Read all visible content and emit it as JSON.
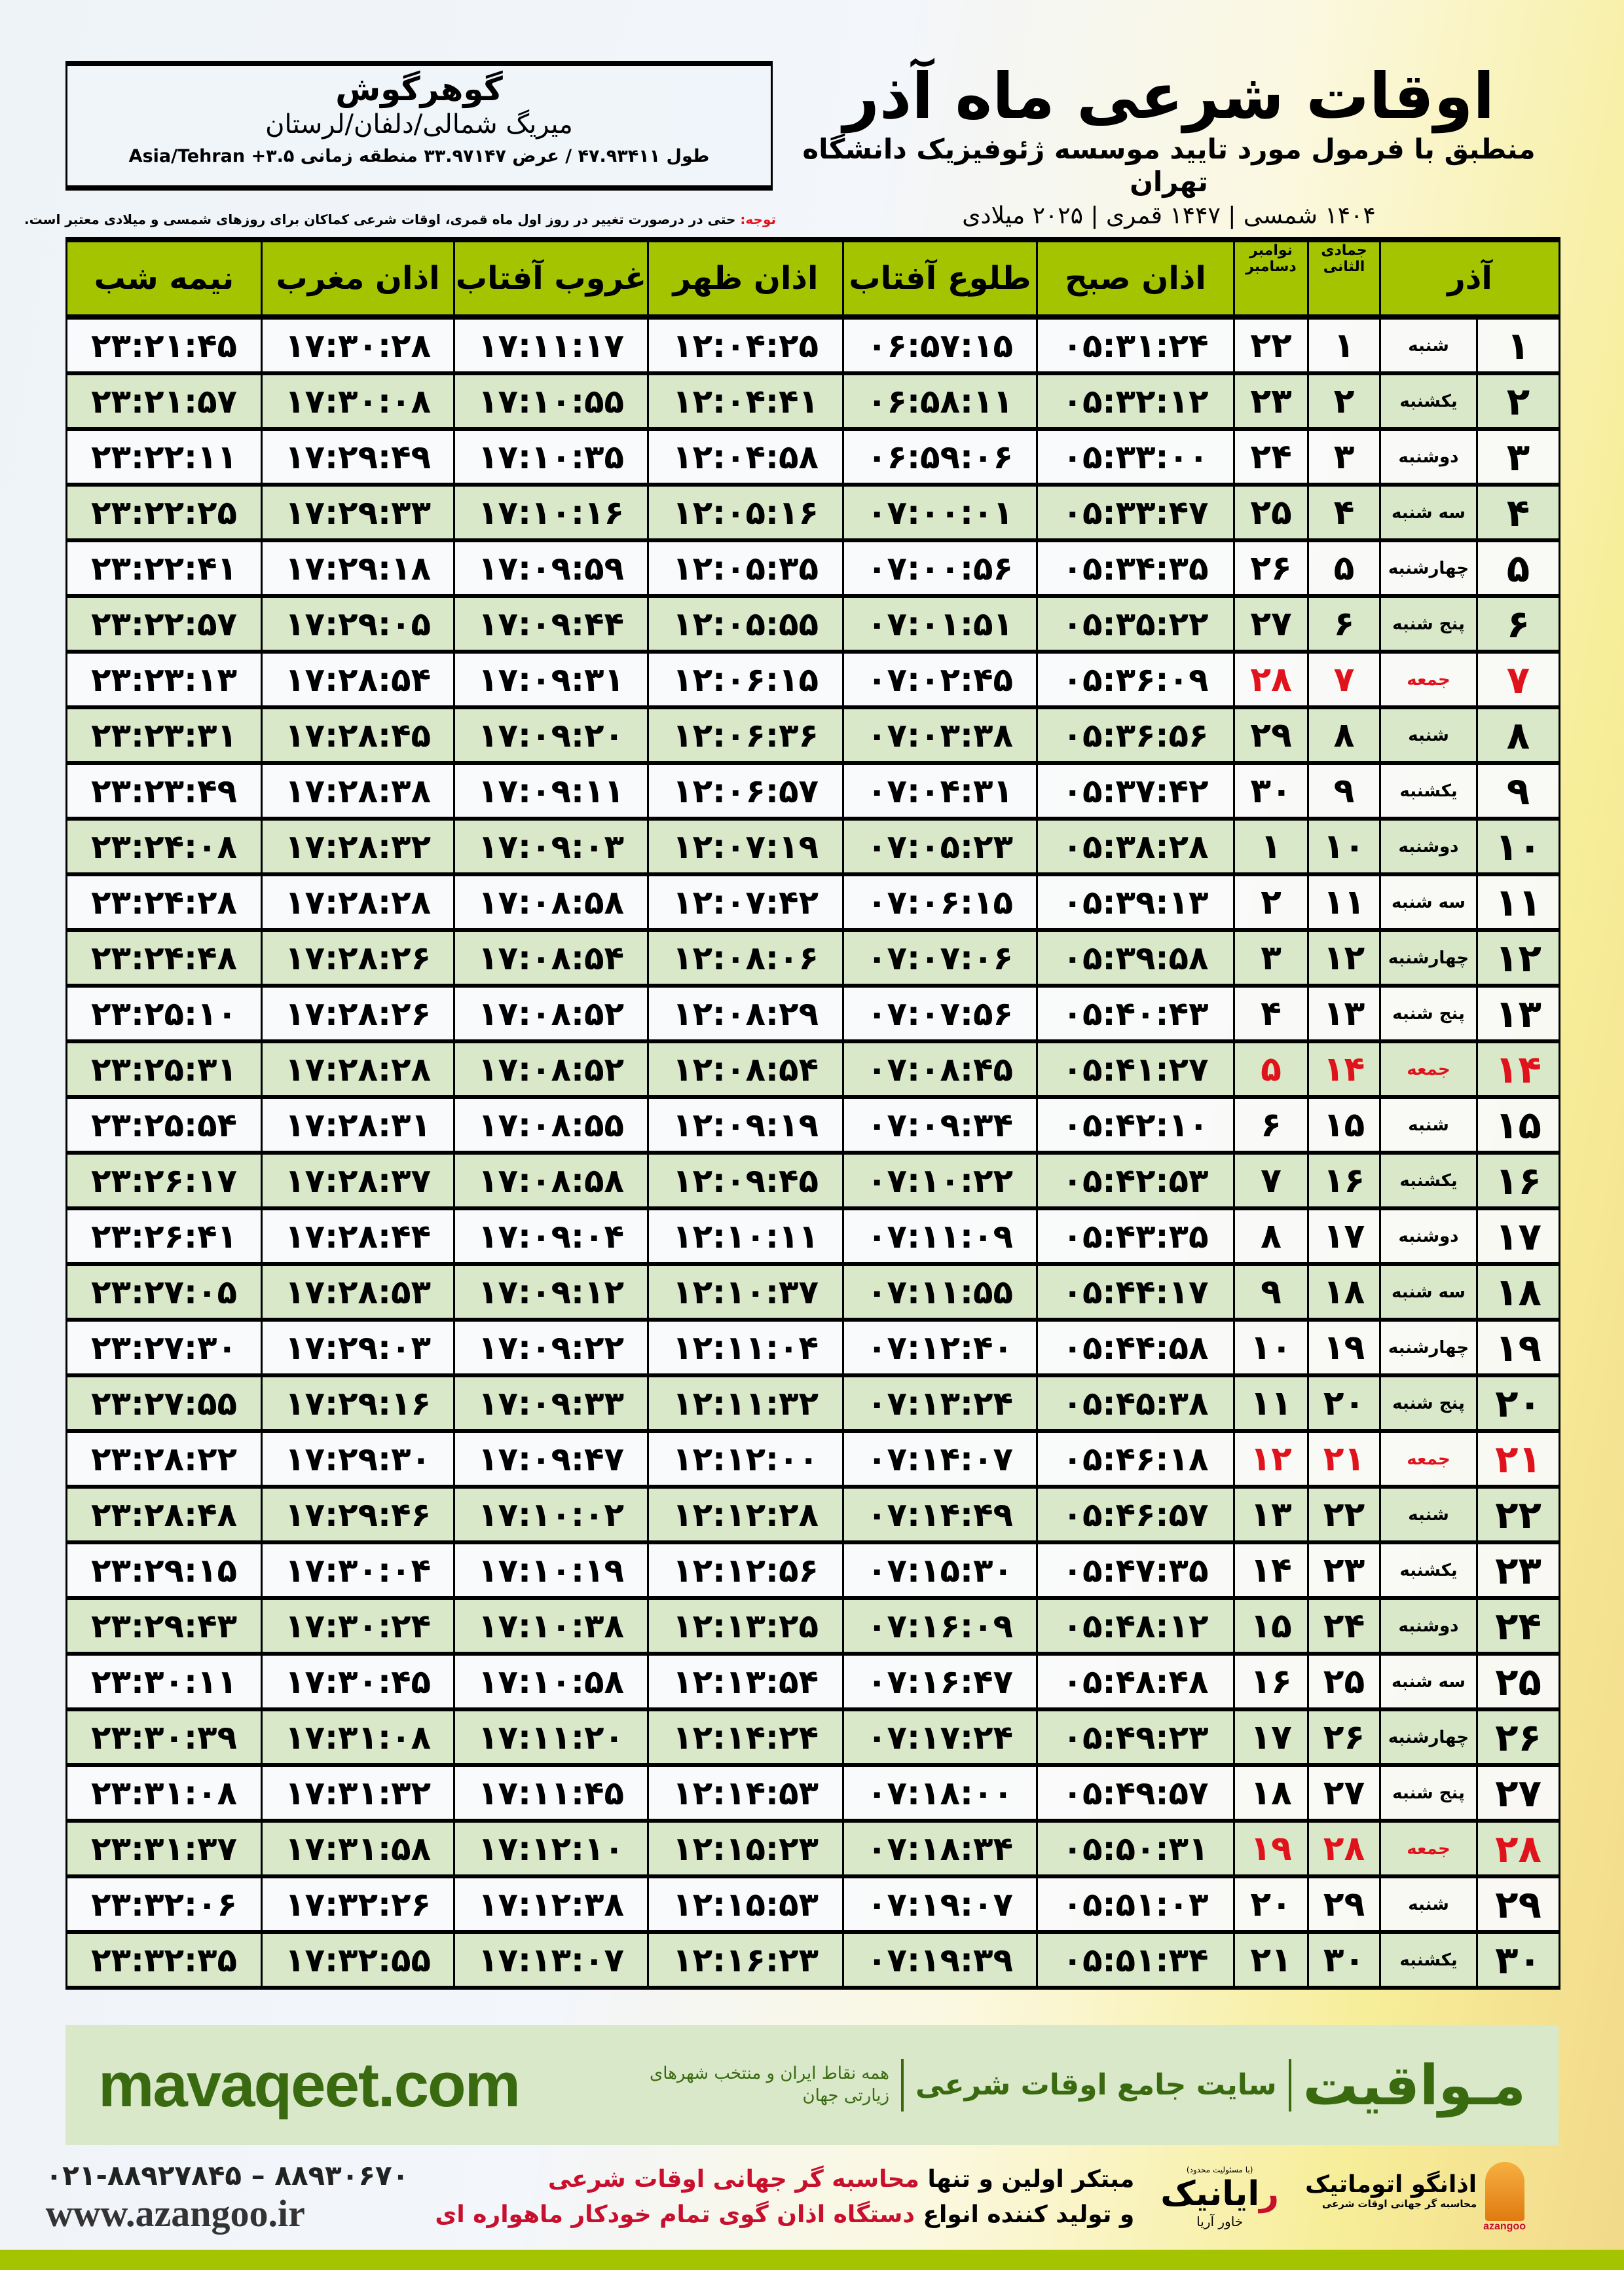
{
  "location": {
    "name": "گوهرگوش",
    "region": "میریگ شمالی/دلفان/لرستان",
    "coords": "طول ۴۷.۹۳۴۱۱ / عرض ۳۳.۹۷۱۴۷ منطقه زمانی ۳.۵+ Asia/Tehran"
  },
  "header": {
    "title": "اوقات شرعی ماه آذر",
    "subtitle": "منطبق با فرمول مورد تایید موسسه ژئوفیزیک دانشگاه تهران",
    "years": "۱۴۰۴ شمسی | ۱۴۴۷ قمری | ۲۰۲۵ میلادی"
  },
  "note": {
    "label": "توجه:",
    "text": " حتی در درصورت تغییر در روز اول ماه قمری، اوقات شرعی کماکان برای روزهای شمسی و میلادی معتبر است."
  },
  "table": {
    "columns": {
      "month": "آذر",
      "hijri": "جمادی الثانی",
      "gregorian": "نوامبر دسامبر",
      "fajr": "اذان صبح",
      "sunrise": "طلوع آفتاب",
      "dhuhr": "اذان ظهر",
      "sunset": "غروب آفتاب",
      "maghrib": "اذان مغرب",
      "midnight": "نیمه شب"
    },
    "holiday_color": "#e0121b",
    "rows": [
      [
        "۱",
        "شنبه",
        "۱",
        "۲۲",
        "۰۵:۳۱:۲۴",
        "۰۶:۵۷:۱۵",
        "۱۲:۰۴:۲۵",
        "۱۷:۱۱:۱۷",
        "۱۷:۳۰:۲۸",
        "۲۳:۲۱:۴۵"
      ],
      [
        "۲",
        "یکشنبه",
        "۲",
        "۲۳",
        "۰۵:۳۲:۱۲",
        "۰۶:۵۸:۱۱",
        "۱۲:۰۴:۴۱",
        "۱۷:۱۰:۵۵",
        "۱۷:۳۰:۰۸",
        "۲۳:۲۱:۵۷"
      ],
      [
        "۳",
        "دوشنبه",
        "۳",
        "۲۴",
        "۰۵:۳۳:۰۰",
        "۰۶:۵۹:۰۶",
        "۱۲:۰۴:۵۸",
        "۱۷:۱۰:۳۵",
        "۱۷:۲۹:۴۹",
        "۲۳:۲۲:۱۱"
      ],
      [
        "۴",
        "سه شنبه",
        "۴",
        "۲۵",
        "۰۵:۳۳:۴۷",
        "۰۷:۰۰:۰۱",
        "۱۲:۰۵:۱۶",
        "۱۷:۱۰:۱۶",
        "۱۷:۲۹:۳۳",
        "۲۳:۲۲:۲۵"
      ],
      [
        "۵",
        "چهارشنبه",
        "۵",
        "۲۶",
        "۰۵:۳۴:۳۵",
        "۰۷:۰۰:۵۶",
        "۱۲:۰۵:۳۵",
        "۱۷:۰۹:۵۹",
        "۱۷:۲۹:۱۸",
        "۲۳:۲۲:۴۱"
      ],
      [
        "۶",
        "پنج شنبه",
        "۶",
        "۲۷",
        "۰۵:۳۵:۲۲",
        "۰۷:۰۱:۵۱",
        "۱۲:۰۵:۵۵",
        "۱۷:۰۹:۴۴",
        "۱۷:۲۹:۰۵",
        "۲۳:۲۲:۵۷"
      ],
      [
        "۷",
        "جمعه",
        "۷",
        "۲۸",
        "۰۵:۳۶:۰۹",
        "۰۷:۰۲:۴۵",
        "۱۲:۰۶:۱۵",
        "۱۷:۰۹:۳۱",
        "۱۷:۲۸:۵۴",
        "۲۳:۲۳:۱۳"
      ],
      [
        "۸",
        "شنبه",
        "۸",
        "۲۹",
        "۰۵:۳۶:۵۶",
        "۰۷:۰۳:۳۸",
        "۱۲:۰۶:۳۶",
        "۱۷:۰۹:۲۰",
        "۱۷:۲۸:۴۵",
        "۲۳:۲۳:۳۱"
      ],
      [
        "۹",
        "یکشنبه",
        "۹",
        "۳۰",
        "۰۵:۳۷:۴۲",
        "۰۷:۰۴:۳۱",
        "۱۲:۰۶:۵۷",
        "۱۷:۰۹:۱۱",
        "۱۷:۲۸:۳۸",
        "۲۳:۲۳:۴۹"
      ],
      [
        "۱۰",
        "دوشنبه",
        "۱۰",
        "۱",
        "۰۵:۳۸:۲۸",
        "۰۷:۰۵:۲۳",
        "۱۲:۰۷:۱۹",
        "۱۷:۰۹:۰۳",
        "۱۷:۲۸:۳۲",
        "۲۳:۲۴:۰۸"
      ],
      [
        "۱۱",
        "سه شنبه",
        "۱۱",
        "۲",
        "۰۵:۳۹:۱۳",
        "۰۷:۰۶:۱۵",
        "۱۲:۰۷:۴۲",
        "۱۷:۰۸:۵۸",
        "۱۷:۲۸:۲۸",
        "۲۳:۲۴:۲۸"
      ],
      [
        "۱۲",
        "چهارشنبه",
        "۱۲",
        "۳",
        "۰۵:۳۹:۵۸",
        "۰۷:۰۷:۰۶",
        "۱۲:۰۸:۰۶",
        "۱۷:۰۸:۵۴",
        "۱۷:۲۸:۲۶",
        "۲۳:۲۴:۴۸"
      ],
      [
        "۱۳",
        "پنج شنبه",
        "۱۳",
        "۴",
        "۰۵:۴۰:۴۳",
        "۰۷:۰۷:۵۶",
        "۱۲:۰۸:۲۹",
        "۱۷:۰۸:۵۲",
        "۱۷:۲۸:۲۶",
        "۲۳:۲۵:۱۰"
      ],
      [
        "۱۴",
        "جمعه",
        "۱۴",
        "۵",
        "۰۵:۴۱:۲۷",
        "۰۷:۰۸:۴۵",
        "۱۲:۰۸:۵۴",
        "۱۷:۰۸:۵۲",
        "۱۷:۲۸:۲۸",
        "۲۳:۲۵:۳۱"
      ],
      [
        "۱۵",
        "شنبه",
        "۱۵",
        "۶",
        "۰۵:۴۲:۱۰",
        "۰۷:۰۹:۳۴",
        "۱۲:۰۹:۱۹",
        "۱۷:۰۸:۵۵",
        "۱۷:۲۸:۳۱",
        "۲۳:۲۵:۵۴"
      ],
      [
        "۱۶",
        "یکشنبه",
        "۱۶",
        "۷",
        "۰۵:۴۲:۵۳",
        "۰۷:۱۰:۲۲",
        "۱۲:۰۹:۴۵",
        "۱۷:۰۸:۵۸",
        "۱۷:۲۸:۳۷",
        "۲۳:۲۶:۱۷"
      ],
      [
        "۱۷",
        "دوشنبه",
        "۱۷",
        "۸",
        "۰۵:۴۳:۳۵",
        "۰۷:۱۱:۰۹",
        "۱۲:۱۰:۱۱",
        "۱۷:۰۹:۰۴",
        "۱۷:۲۸:۴۴",
        "۲۳:۲۶:۴۱"
      ],
      [
        "۱۸",
        "سه شنبه",
        "۱۸",
        "۹",
        "۰۵:۴۴:۱۷",
        "۰۷:۱۱:۵۵",
        "۱۲:۱۰:۳۷",
        "۱۷:۰۹:۱۲",
        "۱۷:۲۸:۵۳",
        "۲۳:۲۷:۰۵"
      ],
      [
        "۱۹",
        "چهارشنبه",
        "۱۹",
        "۱۰",
        "۰۵:۴۴:۵۸",
        "۰۷:۱۲:۴۰",
        "۱۲:۱۱:۰۴",
        "۱۷:۰۹:۲۲",
        "۱۷:۲۹:۰۳",
        "۲۳:۲۷:۳۰"
      ],
      [
        "۲۰",
        "پنج شنبه",
        "۲۰",
        "۱۱",
        "۰۵:۴۵:۳۸",
        "۰۷:۱۳:۲۴",
        "۱۲:۱۱:۳۲",
        "۱۷:۰۹:۳۳",
        "۱۷:۲۹:۱۶",
        "۲۳:۲۷:۵۵"
      ],
      [
        "۲۱",
        "جمعه",
        "۲۱",
        "۱۲",
        "۰۵:۴۶:۱۸",
        "۰۷:۱۴:۰۷",
        "۱۲:۱۲:۰۰",
        "۱۷:۰۹:۴۷",
        "۱۷:۲۹:۳۰",
        "۲۳:۲۸:۲۲"
      ],
      [
        "۲۲",
        "شنبه",
        "۲۲",
        "۱۳",
        "۰۵:۴۶:۵۷",
        "۰۷:۱۴:۴۹",
        "۱۲:۱۲:۲۸",
        "۱۷:۱۰:۰۲",
        "۱۷:۲۹:۴۶",
        "۲۳:۲۸:۴۸"
      ],
      [
        "۲۳",
        "یکشنبه",
        "۲۳",
        "۱۴",
        "۰۵:۴۷:۳۵",
        "۰۷:۱۵:۳۰",
        "۱۲:۱۲:۵۶",
        "۱۷:۱۰:۱۹",
        "۱۷:۳۰:۰۴",
        "۲۳:۲۹:۱۵"
      ],
      [
        "۲۴",
        "دوشنبه",
        "۲۴",
        "۱۵",
        "۰۵:۴۸:۱۲",
        "۰۷:۱۶:۰۹",
        "۱۲:۱۳:۲۵",
        "۱۷:۱۰:۳۸",
        "۱۷:۳۰:۲۴",
        "۲۳:۲۹:۴۳"
      ],
      [
        "۲۵",
        "سه شنبه",
        "۲۵",
        "۱۶",
        "۰۵:۴۸:۴۸",
        "۰۷:۱۶:۴۷",
        "۱۲:۱۳:۵۴",
        "۱۷:۱۰:۵۸",
        "۱۷:۳۰:۴۵",
        "۲۳:۳۰:۱۱"
      ],
      [
        "۲۶",
        "چهارشنبه",
        "۲۶",
        "۱۷",
        "۰۵:۴۹:۲۳",
        "۰۷:۱۷:۲۴",
        "۱۲:۱۴:۲۴",
        "۱۷:۱۱:۲۰",
        "۱۷:۳۱:۰۸",
        "۲۳:۳۰:۳۹"
      ],
      [
        "۲۷",
        "پنج شنبه",
        "۲۷",
        "۱۸",
        "۰۵:۴۹:۵۷",
        "۰۷:۱۸:۰۰",
        "۱۲:۱۴:۵۳",
        "۱۷:۱۱:۴۵",
        "۱۷:۳۱:۳۲",
        "۲۳:۳۱:۰۸"
      ],
      [
        "۲۸",
        "جمعه",
        "۲۸",
        "۱۹",
        "۰۵:۵۰:۳۱",
        "۰۷:۱۸:۳۴",
        "۱۲:۱۵:۲۳",
        "۱۷:۱۲:۱۰",
        "۱۷:۳۱:۵۸",
        "۲۳:۳۱:۳۷"
      ],
      [
        "۲۹",
        "شنبه",
        "۲۹",
        "۲۰",
        "۰۵:۵۱:۰۳",
        "۰۷:۱۹:۰۷",
        "۱۲:۱۵:۵۳",
        "۱۷:۱۲:۳۸",
        "۱۷:۳۲:۲۶",
        "۲۳:۳۲:۰۶"
      ],
      [
        "۳۰",
        "یکشنبه",
        "۳۰",
        "۲۱",
        "۰۵:۵۱:۳۴",
        "۰۷:۱۹:۳۹",
        "۱۲:۱۶:۲۳",
        "۱۷:۱۳:۰۷",
        "۱۷:۳۲:۵۵",
        "۲۳:۳۲:۳۵"
      ]
    ]
  },
  "banner": {
    "brand": "مـواقیت",
    "tagline": "سایت جامع اوقات شرعی",
    "tagline2": "همه نقاط ایران و منتخب شهرهای زیارتی جهان",
    "site": "mavaqeet.com",
    "background": "#d8e8c8",
    "text_color": "#3a6a10"
  },
  "footer": {
    "phone": "۰۲۱-۸۸۹۲۷۸۴۵ – ۸۸۹۳۰۶۷۰",
    "website": "www.azangoo.ir",
    "promo_line1_a": "مبتکر اولین و تنها ",
    "promo_line1_b": "محاسبه گر جهانی اوقات شرعی",
    "promo_line2_a": "و تولید کننده انواع ",
    "promo_line2_b": "دستگاه اذان گوی تمام خودکار ماهواره ای",
    "logo_rayanik_small": "(با مسئولیت محدود)",
    "logo_rayanik_main_red": "ر",
    "logo_rayanik_main": "ایانیک",
    "logo_rayanik_sub": "خاور آریا",
    "logo_azangoo_name": "اذانگو اتوماتیک",
    "logo_azangoo_sub": "محاسبه گر جهانی اوقات شرعی",
    "logo_azangoo_latin": "azangoo",
    "accent": "#a5c400"
  }
}
